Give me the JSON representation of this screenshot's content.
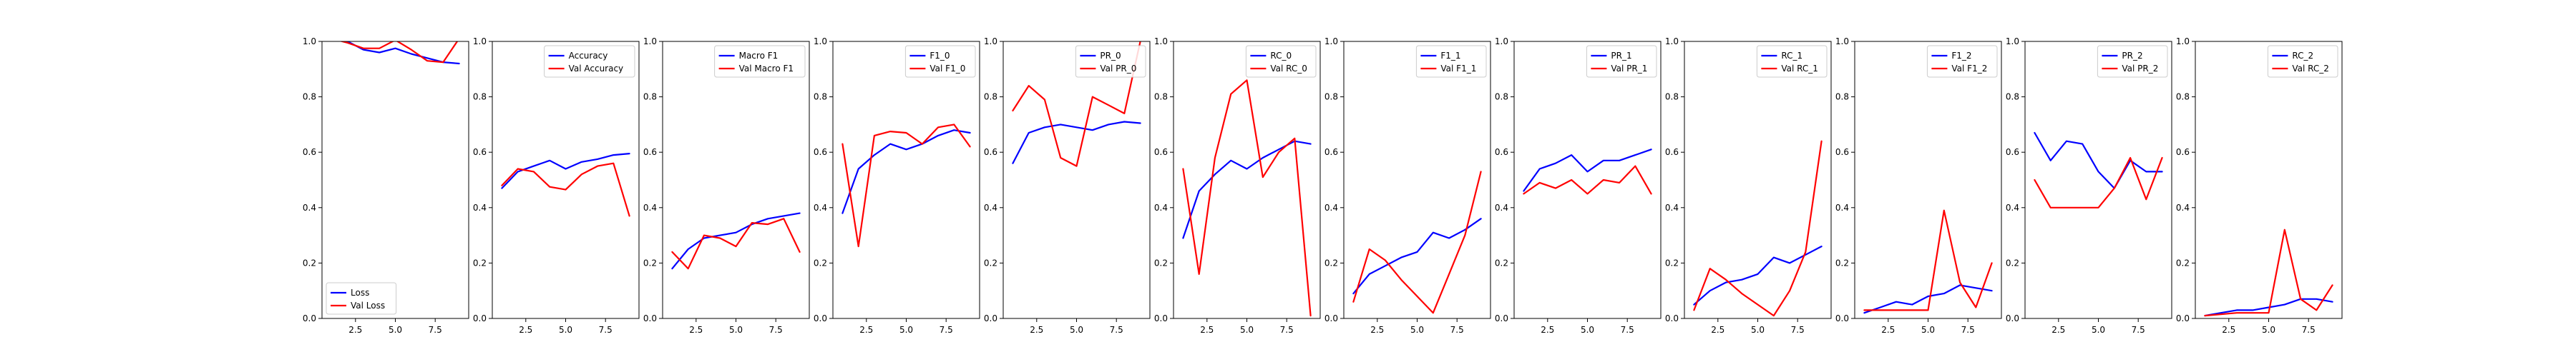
{
  "colors": {
    "train": "#0000ff",
    "val": "#ff0000"
  },
  "chart_data": [
    {
      "type": "line",
      "x": [
        1,
        2,
        3,
        4,
        5,
        6,
        7,
        8,
        9
      ],
      "xlim": [
        0.4,
        9.6
      ],
      "ylim": [
        0,
        1
      ],
      "xticks": [
        "2.5",
        "5.0",
        "7.5"
      ],
      "yticks": [
        "0.0",
        "0.2",
        "0.4",
        "0.6",
        "0.8",
        "1.0"
      ],
      "legend_loc": "lower-left",
      "series": [
        {
          "name": "Loss",
          "values": [
            1.01,
            1.0,
            0.97,
            0.96,
            0.975,
            0.955,
            0.94,
            0.925,
            0.92
          ]
        },
        {
          "name": "Val Loss",
          "values": [
            1.01,
            0.995,
            0.975,
            0.975,
            1.005,
            0.97,
            0.93,
            0.925,
            1.01
          ]
        }
      ]
    },
    {
      "type": "line",
      "x": [
        1,
        2,
        3,
        4,
        5,
        6,
        7,
        8,
        9
      ],
      "xlim": [
        0.4,
        9.6
      ],
      "ylim": [
        0,
        1
      ],
      "xticks": [
        "2.5",
        "5.0",
        "7.5"
      ],
      "yticks": [
        "0.0",
        "0.2",
        "0.4",
        "0.6",
        "0.8",
        "1.0"
      ],
      "legend_loc": "upper-right",
      "series": [
        {
          "name": "Accuracy",
          "values": [
            0.47,
            0.53,
            0.55,
            0.57,
            0.54,
            0.565,
            0.575,
            0.59,
            0.595
          ]
        },
        {
          "name": "Val Accuracy",
          "values": [
            0.48,
            0.54,
            0.53,
            0.475,
            0.465,
            0.52,
            0.55,
            0.56,
            0.37
          ]
        }
      ]
    },
    {
      "type": "line",
      "x": [
        1,
        2,
        3,
        4,
        5,
        6,
        7,
        8,
        9
      ],
      "xlim": [
        0.4,
        9.6
      ],
      "ylim": [
        0,
        1
      ],
      "xticks": [
        "2.5",
        "5.0",
        "7.5"
      ],
      "yticks": [
        "0.0",
        "0.2",
        "0.4",
        "0.6",
        "0.8",
        "1.0"
      ],
      "legend_loc": "upper-right",
      "series": [
        {
          "name": "Macro F1",
          "values": [
            0.18,
            0.25,
            0.29,
            0.3,
            0.31,
            0.34,
            0.36,
            0.37,
            0.38
          ]
        },
        {
          "name": "Val Macro F1",
          "values": [
            0.24,
            0.18,
            0.3,
            0.29,
            0.26,
            0.345,
            0.34,
            0.36,
            0.24
          ]
        }
      ]
    },
    {
      "type": "line",
      "x": [
        1,
        2,
        3,
        4,
        5,
        6,
        7,
        8,
        9
      ],
      "xlim": [
        0.4,
        9.6
      ],
      "ylim": [
        0,
        1
      ],
      "xticks": [
        "2.5",
        "5.0",
        "7.5"
      ],
      "yticks": [
        "0.0",
        "0.2",
        "0.4",
        "0.6",
        "0.8",
        "1.0"
      ],
      "legend_loc": "upper-right",
      "series": [
        {
          "name": "F1_0",
          "values": [
            0.38,
            0.54,
            0.59,
            0.63,
            0.61,
            0.63,
            0.66,
            0.68,
            0.67
          ]
        },
        {
          "name": "Val F1_0",
          "values": [
            0.63,
            0.26,
            0.66,
            0.675,
            0.67,
            0.63,
            0.69,
            0.7,
            0.62
          ]
        }
      ]
    },
    {
      "type": "line",
      "x": [
        1,
        2,
        3,
        4,
        5,
        6,
        7,
        8,
        9
      ],
      "xlim": [
        0.4,
        9.6
      ],
      "ylim": [
        0,
        1
      ],
      "xticks": [
        "2.5",
        "5.0",
        "7.5"
      ],
      "yticks": [
        "0.0",
        "0.2",
        "0.4",
        "0.6",
        "0.8",
        "1.0"
      ],
      "legend_loc": "upper-right",
      "series": [
        {
          "name": "PR_0",
          "values": [
            0.56,
            0.67,
            0.69,
            0.7,
            0.69,
            0.68,
            0.7,
            0.71,
            0.705
          ]
        },
        {
          "name": "Val PR_0",
          "values": [
            0.75,
            0.84,
            0.79,
            0.58,
            0.55,
            0.8,
            0.77,
            0.74,
            1.0
          ]
        }
      ]
    },
    {
      "type": "line",
      "x": [
        1,
        2,
        3,
        4,
        5,
        6,
        7,
        8,
        9
      ],
      "xlim": [
        0.4,
        9.6
      ],
      "ylim": [
        0,
        1
      ],
      "xticks": [
        "2.5",
        "5.0",
        "7.5"
      ],
      "yticks": [
        "0.0",
        "0.2",
        "0.4",
        "0.6",
        "0.8",
        "1.0"
      ],
      "legend_loc": "upper-right",
      "series": [
        {
          "name": "RC_0",
          "values": [
            0.29,
            0.46,
            0.52,
            0.57,
            0.54,
            0.58,
            0.61,
            0.64,
            0.63
          ]
        },
        {
          "name": "Val RC_0",
          "values": [
            0.54,
            0.16,
            0.58,
            0.81,
            0.86,
            0.51,
            0.6,
            0.65,
            0.01
          ]
        }
      ]
    },
    {
      "type": "line",
      "x": [
        1,
        2,
        3,
        4,
        5,
        6,
        7,
        8,
        9
      ],
      "xlim": [
        0.4,
        9.6
      ],
      "ylim": [
        0,
        1
      ],
      "xticks": [
        "2.5",
        "5.0",
        "7.5"
      ],
      "yticks": [
        "0.0",
        "0.2",
        "0.4",
        "0.6",
        "0.8",
        "1.0"
      ],
      "legend_loc": "upper-right",
      "series": [
        {
          "name": "F1_1",
          "values": [
            0.09,
            0.16,
            0.19,
            0.22,
            0.24,
            0.31,
            0.29,
            0.32,
            0.36
          ]
        },
        {
          "name": "Val F1_1",
          "values": [
            0.06,
            0.25,
            0.21,
            0.14,
            0.08,
            0.02,
            0.16,
            0.3,
            0.53
          ]
        }
      ]
    },
    {
      "type": "line",
      "x": [
        1,
        2,
        3,
        4,
        5,
        6,
        7,
        8,
        9
      ],
      "xlim": [
        0.4,
        9.6
      ],
      "ylim": [
        0,
        1
      ],
      "xticks": [
        "2.5",
        "5.0",
        "7.5"
      ],
      "yticks": [
        "0.0",
        "0.2",
        "0.4",
        "0.6",
        "0.8",
        "1.0"
      ],
      "legend_loc": "upper-right",
      "series": [
        {
          "name": "PR_1",
          "values": [
            0.46,
            0.54,
            0.56,
            0.59,
            0.53,
            0.57,
            0.57,
            0.59,
            0.61
          ]
        },
        {
          "name": "Val PR_1",
          "values": [
            0.45,
            0.49,
            0.47,
            0.5,
            0.45,
            0.5,
            0.49,
            0.55,
            0.45
          ]
        }
      ]
    },
    {
      "type": "line",
      "x": [
        1,
        2,
        3,
        4,
        5,
        6,
        7,
        8,
        9
      ],
      "xlim": [
        0.4,
        9.6
      ],
      "ylim": [
        0,
        1
      ],
      "xticks": [
        "2.5",
        "5.0",
        "7.5"
      ],
      "yticks": [
        "0.0",
        "0.2",
        "0.4",
        "0.6",
        "0.8",
        "1.0"
      ],
      "legend_loc": "upper-right",
      "series": [
        {
          "name": "RC_1",
          "values": [
            0.05,
            0.1,
            0.13,
            0.14,
            0.16,
            0.22,
            0.2,
            0.23,
            0.26
          ]
        },
        {
          "name": "Val RC_1",
          "values": [
            0.03,
            0.18,
            0.14,
            0.09,
            0.05,
            0.01,
            0.1,
            0.24,
            0.64
          ]
        }
      ]
    },
    {
      "type": "line",
      "x": [
        1,
        2,
        3,
        4,
        5,
        6,
        7,
        8,
        9
      ],
      "xlim": [
        0.4,
        9.6
      ],
      "ylim": [
        0,
        1
      ],
      "xticks": [
        "2.5",
        "5.0",
        "7.5"
      ],
      "yticks": [
        "0.0",
        "0.2",
        "0.4",
        "0.6",
        "0.8",
        "1.0"
      ],
      "legend_loc": "upper-right",
      "series": [
        {
          "name": "F1_2",
          "values": [
            0.02,
            0.04,
            0.06,
            0.05,
            0.08,
            0.09,
            0.12,
            0.11,
            0.1
          ]
        },
        {
          "name": "Val F1_2",
          "values": [
            0.03,
            0.03,
            0.03,
            0.03,
            0.03,
            0.39,
            0.13,
            0.04,
            0.2
          ]
        }
      ]
    },
    {
      "type": "line",
      "x": [
        1,
        2,
        3,
        4,
        5,
        6,
        7,
        8,
        9
      ],
      "xlim": [
        0.4,
        9.6
      ],
      "ylim": [
        0,
        1
      ],
      "xticks": [
        "2.5",
        "5.0",
        "7.5"
      ],
      "yticks": [
        "0.0",
        "0.2",
        "0.4",
        "0.6",
        "0.8",
        "1.0"
      ],
      "legend_loc": "upper-right",
      "series": [
        {
          "name": "PR_2",
          "values": [
            0.67,
            0.57,
            0.64,
            0.63,
            0.53,
            0.47,
            0.57,
            0.53,
            0.53
          ]
        },
        {
          "name": "Val PR_2",
          "values": [
            0.5,
            0.4,
            0.4,
            0.4,
            0.4,
            0.47,
            0.58,
            0.43,
            0.58
          ]
        }
      ]
    },
    {
      "type": "line",
      "x": [
        1,
        2,
        3,
        4,
        5,
        6,
        7,
        8,
        9
      ],
      "xlim": [
        0.4,
        9.6
      ],
      "ylim": [
        0,
        1
      ],
      "xticks": [
        "2.5",
        "5.0",
        "7.5"
      ],
      "yticks": [
        "0.0",
        "0.2",
        "0.4",
        "0.6",
        "0.8",
        "1.0"
      ],
      "legend_loc": "upper-right",
      "series": [
        {
          "name": "RC_2",
          "values": [
            0.01,
            0.02,
            0.03,
            0.03,
            0.04,
            0.05,
            0.07,
            0.07,
            0.06
          ]
        },
        {
          "name": "Val RC_2",
          "values": [
            0.01,
            0.015,
            0.02,
            0.02,
            0.02,
            0.32,
            0.07,
            0.03,
            0.12
          ]
        }
      ]
    }
  ]
}
